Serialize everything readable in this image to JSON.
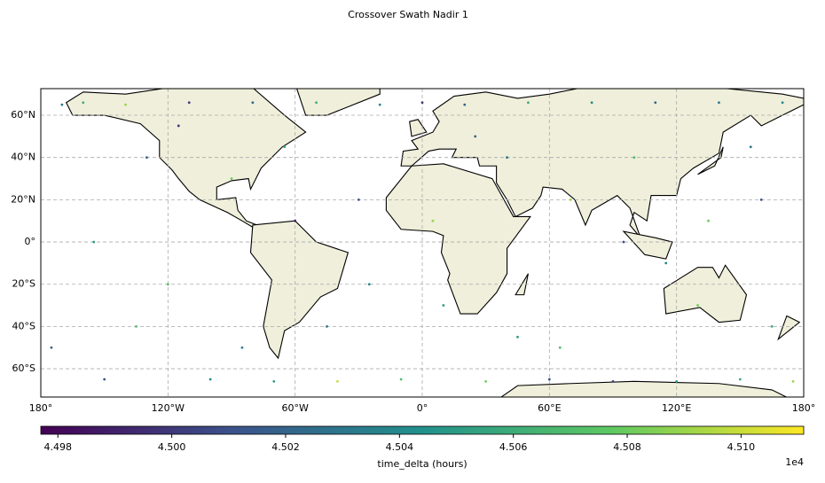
{
  "chart_data": {
    "type": "scatter-map",
    "title": "Crossover Swath Nadir 1",
    "xlim": [
      -180,
      180
    ],
    "ylim": [
      -73.4,
      72.6
    ],
    "xticks": [
      {
        "value": -180,
        "label": "180°"
      },
      {
        "value": -120,
        "label": "120°W"
      },
      {
        "value": -60,
        "label": "60°W"
      },
      {
        "value": 0,
        "label": "0°"
      },
      {
        "value": 60,
        "label": "60°E"
      },
      {
        "value": 120,
        "label": "120°E"
      },
      {
        "value": 180,
        "label": "180°"
      }
    ],
    "yticks": [
      {
        "value": -60,
        "label": "60°S"
      },
      {
        "value": -40,
        "label": "40°S"
      },
      {
        "value": -20,
        "label": "20°S"
      },
      {
        "value": 0,
        "label": "0°"
      },
      {
        "value": 20,
        "label": "20°N"
      },
      {
        "value": 40,
        "label": "40°N"
      },
      {
        "value": 60,
        "label": "60°N"
      }
    ],
    "grid": true,
    "colormap": "viridis",
    "x": [
      -170,
      -160,
      -150,
      -140,
      -130,
      -120,
      -110,
      -100,
      -90,
      -80,
      -70,
      -60,
      -50,
      -45,
      -40,
      -30,
      -20,
      -10,
      0,
      10,
      20,
      30,
      40,
      50,
      60,
      70,
      80,
      90,
      100,
      110,
      120,
      130,
      140,
      150,
      160,
      170,
      175,
      -175,
      -155,
      -135,
      -115,
      -85,
      -65,
      -25,
      5,
      25,
      45,
      65,
      95,
      115,
      135,
      155,
      165
    ],
    "y": [
      65,
      66,
      -65,
      65,
      40,
      -20,
      66,
      -65,
      30,
      66,
      -66,
      10,
      66,
      -40,
      -66,
      20,
      65,
      -65,
      66,
      -30,
      65,
      -66,
      40,
      66,
      -65,
      20,
      66,
      -66,
      40,
      66,
      -66,
      -30,
      66,
      -65,
      20,
      66,
      -66,
      -50,
      0,
      -40,
      55,
      -50,
      45,
      -20,
      10,
      50,
      -45,
      -50,
      0,
      -10,
      10,
      45,
      -40
    ],
    "values": [
      4.503,
      4.506,
      4.501,
      4.509,
      4.502,
      4.507,
      4.5,
      4.504,
      4.508,
      4.502,
      4.505,
      4.499,
      4.506,
      4.503,
      4.51,
      4.501,
      4.504,
      4.507,
      4.5,
      4.505,
      4.502,
      4.508,
      4.503,
      4.506,
      4.501,
      4.509,
      4.504,
      4.5,
      4.507,
      4.502,
      4.505,
      4.508,
      4.503,
      4.506,
      4.501,
      4.504,
      4.509,
      4.502,
      4.505,
      4.507,
      4.5,
      4.503,
      4.506,
      4.504,
      4.509,
      4.502,
      4.505,
      4.507,
      4.501,
      4.504,
      4.508,
      4.503,
      4.506
    ],
    "clim": [
      4.4977,
      4.5111
    ],
    "cticks": [
      4.498,
      {
        "value": 4.5,
        "label": "4.500"
      },
      4.502,
      4.504,
      4.506,
      4.508,
      {
        "value": 4.51,
        "label": "4.510"
      }
    ],
    "colorbar_label": "time_delta (hours)",
    "colorbar_offset": "1e4"
  }
}
